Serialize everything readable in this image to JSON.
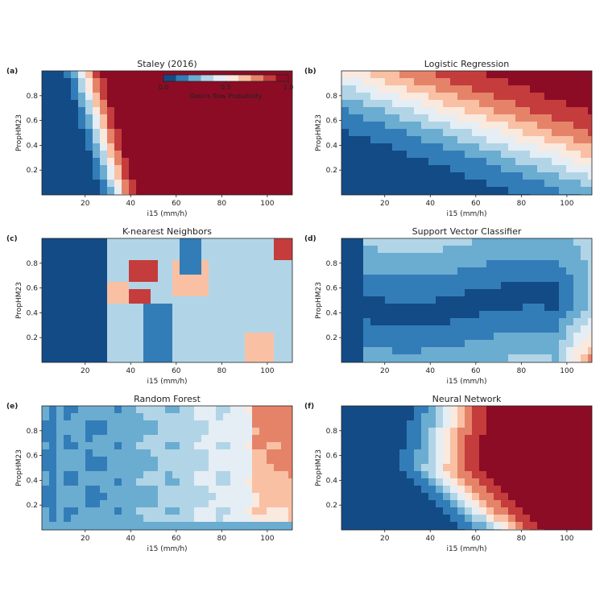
{
  "figure": {
    "colorbar": {
      "label": "Debris flow Probability",
      "ticks": [
        "0.0",
        "0.5",
        "1.0"
      ]
    }
  },
  "chart_data": [
    {
      "type": "heatmap",
      "panel": "(a)",
      "title": "Staley (2016)",
      "xlabel": "i15 (mm/h)",
      "ylabel": "PropHM23",
      "xlim": [
        1,
        111
      ],
      "ylim": [
        0,
        1
      ],
      "xticks": [
        20,
        40,
        60,
        80,
        100
      ],
      "yticks": [
        0.2,
        0.4,
        0.6,
        0.8
      ],
      "model": "staley"
    },
    {
      "type": "heatmap",
      "panel": "(b)",
      "title": "Logistic Regression",
      "xlabel": "i15 (mm/h)",
      "ylabel": "PropHM23",
      "xlim": [
        1,
        111
      ],
      "ylim": [
        0,
        1
      ],
      "xticks": [
        20,
        40,
        60,
        80,
        100
      ],
      "yticks": [
        0.2,
        0.4,
        0.6,
        0.8
      ],
      "model": "logistic"
    },
    {
      "type": "heatmap",
      "panel": "(c)",
      "title": "K-nearest Neighbors",
      "xlabel": "i15 (mm/h)",
      "ylabel": "PropHM23",
      "xlim": [
        1,
        111
      ],
      "ylim": [
        0,
        1
      ],
      "xticks": [
        20,
        40,
        60,
        80,
        100
      ],
      "yticks": [
        0.2,
        0.4,
        0.6,
        0.8
      ],
      "model": "knn"
    },
    {
      "type": "heatmap",
      "panel": "(d)",
      "title": "Support Vector Classifier",
      "xlabel": "i15 (mm/h)",
      "ylabel": "PropHM23",
      "xlim": [
        1,
        111
      ],
      "ylim": [
        0,
        1
      ],
      "xticks": [
        20,
        40,
        60,
        80,
        100
      ],
      "yticks": [
        0.2,
        0.4,
        0.6,
        0.8
      ],
      "model": "svc"
    },
    {
      "type": "heatmap",
      "panel": "(e)",
      "title": "Random Forest",
      "xlabel": "i15 (mm/h)",
      "ylabel": "PropHM23",
      "xlim": [
        1,
        111
      ],
      "ylim": [
        0,
        1
      ],
      "xticks": [
        20,
        40,
        60,
        80,
        100
      ],
      "yticks": [
        0.2,
        0.4,
        0.6,
        0.8
      ],
      "model": "rf"
    },
    {
      "type": "heatmap",
      "panel": "(f)",
      "title": "Neural Network",
      "xlabel": "i15 (mm/h)",
      "ylabel": "PropHM23",
      "xlim": [
        1,
        111
      ],
      "ylim": [
        0,
        1
      ],
      "xticks": [
        20,
        40,
        60,
        80,
        100
      ],
      "yticks": [
        0.2,
        0.4,
        0.6,
        0.8
      ],
      "model": "nn"
    }
  ]
}
